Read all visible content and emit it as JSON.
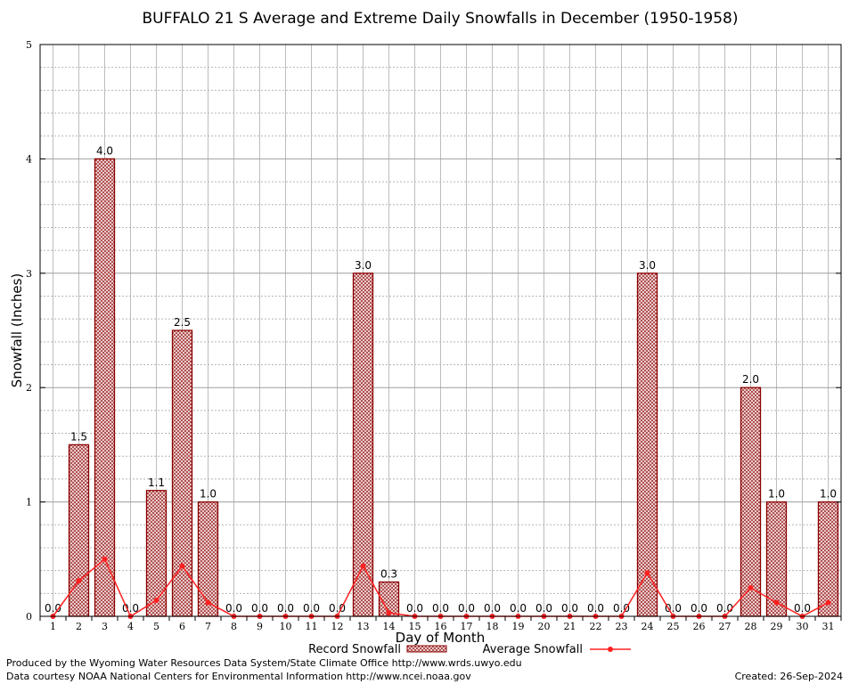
{
  "chart_data": {
    "type": "bar",
    "title": "BUFFALO 21 S Average and Extreme Daily Snowfalls in December (1950-1958)",
    "xlabel": "Day of Month",
    "ylabel": "Snowfall (Inches)",
    "ylim": [
      0,
      5
    ],
    "yticks": [
      "0",
      "1",
      "2",
      "3",
      "4",
      "5"
    ],
    "grid": true,
    "legend_position": "bottom",
    "categories": [
      "1",
      "2",
      "3",
      "4",
      "5",
      "6",
      "7",
      "8",
      "9",
      "10",
      "11",
      "12",
      "13",
      "14",
      "15",
      "16",
      "17",
      "18",
      "19",
      "20",
      "21",
      "22",
      "23",
      "24",
      "25",
      "26",
      "27",
      "28",
      "29",
      "30",
      "31"
    ],
    "series": [
      {
        "name": "Record Snowfall",
        "kind": "bar",
        "color": "#8b0000",
        "values": [
          0.0,
          1.5,
          4.0,
          0.0,
          1.1,
          2.5,
          1.0,
          0.0,
          0.0,
          0.0,
          0.0,
          0.0,
          3.0,
          0.3,
          0.0,
          0.0,
          0.0,
          0.0,
          0.0,
          0.0,
          0.0,
          0.0,
          0.0,
          3.0,
          0.0,
          0.0,
          0.0,
          2.0,
          1.0,
          0.0,
          1.0
        ],
        "labels": [
          "0.0",
          "1.5",
          "4.0",
          "0.0",
          "1.1",
          "2.5",
          "1.0",
          "0.0",
          "0.0",
          "0.0",
          "0.0",
          "0.0",
          "3.0",
          "0.3",
          "0.0",
          "0.0",
          "0.0",
          "0.0",
          "0.0",
          "0.0",
          "0.0",
          "0.0",
          "0.0",
          "3.0",
          "0.0",
          "0.0",
          "0.0",
          "2.0",
          "1.0",
          "0.0",
          "1.0"
        ]
      },
      {
        "name": "Average Snowfall",
        "kind": "line",
        "color": "#ff2020",
        "values": [
          0.0,
          0.31,
          0.5,
          0.0,
          0.14,
          0.44,
          0.12,
          0.0,
          0.0,
          0.0,
          0.0,
          0.0,
          0.44,
          0.03,
          0.0,
          0.0,
          0.0,
          0.0,
          0.0,
          0.0,
          0.0,
          0.0,
          0.0,
          0.38,
          0.0,
          0.0,
          0.0,
          0.25,
          0.12,
          0.0,
          0.12
        ]
      }
    ]
  },
  "footer": {
    "produced_by": "Produced by the Wyoming Water Resources Data System/State Climate Office http://www.wrds.uwyo.edu",
    "courtesy": "Data courtesy NOAA National Centers for Environmental Information http://www.ncei.noaa.gov",
    "created": "Created:  26-Sep-2024"
  }
}
